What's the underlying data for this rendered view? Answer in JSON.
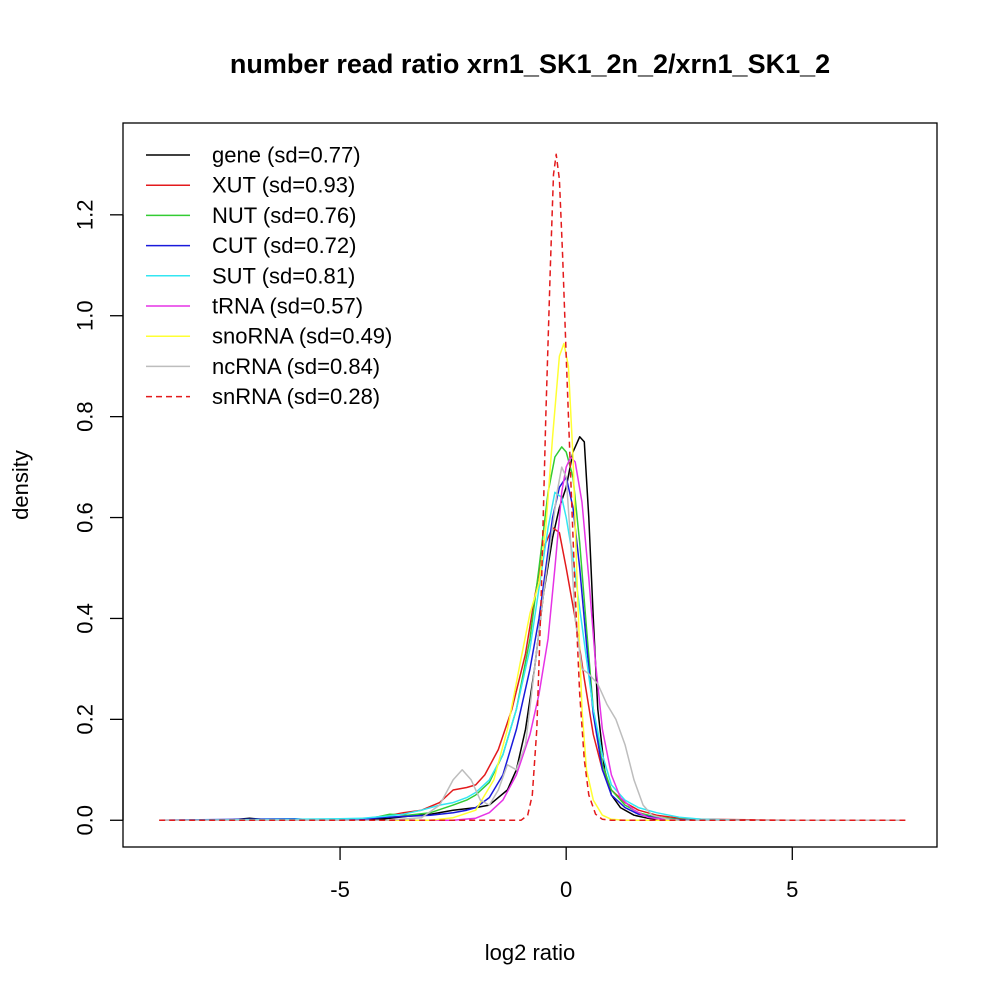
{
  "chart_data": {
    "type": "line",
    "title": "number read ratio xrn1_SK1_2n_2/xrn1_SK1_2",
    "xlabel": "log2 ratio",
    "ylabel": "density",
    "xlim": [
      -9.8,
      8.2
    ],
    "ylim": [
      -0.053,
      1.382
    ],
    "x_ticks": [
      -5,
      0,
      5
    ],
    "x_tick_labels": [
      "-5",
      "0",
      "5"
    ],
    "y_ticks": [
      0.0,
      0.2,
      0.4,
      0.6,
      0.8,
      1.0,
      1.2
    ],
    "y_tick_labels": [
      "0.0",
      "0.2",
      "0.4",
      "0.6",
      "0.8",
      "1.0",
      "1.2"
    ],
    "grid": false,
    "legend_position": "top-left",
    "series": [
      {
        "name": "gene (sd=0.77)",
        "color": "#000000",
        "dash": false,
        "points": [
          [
            -9.0,
            0
          ],
          [
            -7.5,
            0
          ],
          [
            -7,
            0.004
          ],
          [
            -6.5,
            0
          ],
          [
            -6,
            0.002
          ],
          [
            -5,
            0.001
          ],
          [
            -4,
            0.003
          ],
          [
            -3.5,
            0.008
          ],
          [
            -3,
            0.012
          ],
          [
            -2.5,
            0.02
          ],
          [
            -2,
            0.025
          ],
          [
            -1.7,
            0.03
          ],
          [
            -1.5,
            0.045
          ],
          [
            -1.3,
            0.06
          ],
          [
            -1.1,
            0.1
          ],
          [
            -0.9,
            0.18
          ],
          [
            -0.7,
            0.3
          ],
          [
            -0.5,
            0.45
          ],
          [
            -0.3,
            0.56
          ],
          [
            -0.15,
            0.62
          ],
          [
            0,
            0.66
          ],
          [
            0.15,
            0.73
          ],
          [
            0.3,
            0.76
          ],
          [
            0.4,
            0.75
          ],
          [
            0.5,
            0.6
          ],
          [
            0.6,
            0.4
          ],
          [
            0.7,
            0.22
          ],
          [
            0.85,
            0.1
          ],
          [
            1.0,
            0.05
          ],
          [
            1.2,
            0.025
          ],
          [
            1.5,
            0.01
          ],
          [
            1.8,
            0.004
          ],
          [
            2.2,
            0.001
          ],
          [
            3,
            0
          ],
          [
            7.5,
            0
          ]
        ]
      },
      {
        "name": "XUT (sd=0.93)",
        "color": "#e31a1c",
        "dash": false,
        "points": [
          [
            -9.0,
            0
          ],
          [
            -6,
            0.001
          ],
          [
            -5,
            0.002
          ],
          [
            -4.5,
            0.003
          ],
          [
            -4,
            0.008
          ],
          [
            -3.6,
            0.015
          ],
          [
            -3.2,
            0.02
          ],
          [
            -2.8,
            0.035
          ],
          [
            -2.5,
            0.06
          ],
          [
            -2.2,
            0.065
          ],
          [
            -2,
            0.07
          ],
          [
            -1.8,
            0.09
          ],
          [
            -1.5,
            0.14
          ],
          [
            -1.2,
            0.22
          ],
          [
            -0.9,
            0.33
          ],
          [
            -0.7,
            0.44
          ],
          [
            -0.5,
            0.54
          ],
          [
            -0.3,
            0.58
          ],
          [
            -0.15,
            0.57
          ],
          [
            0,
            0.5
          ],
          [
            0.2,
            0.4
          ],
          [
            0.4,
            0.28
          ],
          [
            0.6,
            0.17
          ],
          [
            0.8,
            0.1
          ],
          [
            1.0,
            0.06
          ],
          [
            1.3,
            0.035
          ],
          [
            1.6,
            0.02
          ],
          [
            2.0,
            0.01
          ],
          [
            2.5,
            0.004
          ],
          [
            3,
            0.002
          ],
          [
            4,
            0.001
          ],
          [
            5,
            0
          ],
          [
            7.5,
            0
          ]
        ]
      },
      {
        "name": "NUT (sd=0.76)",
        "color": "#33cc33",
        "dash": false,
        "points": [
          [
            -9.0,
            0
          ],
          [
            -6,
            0
          ],
          [
            -5,
            0.002
          ],
          [
            -4.3,
            0.004
          ],
          [
            -3.9,
            0.012
          ],
          [
            -3.5,
            0.01
          ],
          [
            -3,
            0.015
          ],
          [
            -2.5,
            0.03
          ],
          [
            -2.2,
            0.04
          ],
          [
            -2,
            0.05
          ],
          [
            -1.7,
            0.075
          ],
          [
            -1.4,
            0.13
          ],
          [
            -1.1,
            0.22
          ],
          [
            -0.8,
            0.36
          ],
          [
            -0.6,
            0.5
          ],
          [
            -0.4,
            0.65
          ],
          [
            -0.25,
            0.72
          ],
          [
            -0.1,
            0.74
          ],
          [
            0,
            0.73
          ],
          [
            0.15,
            0.68
          ],
          [
            0.3,
            0.55
          ],
          [
            0.45,
            0.38
          ],
          [
            0.6,
            0.22
          ],
          [
            0.8,
            0.11
          ],
          [
            1.0,
            0.06
          ],
          [
            1.3,
            0.03
          ],
          [
            1.6,
            0.015
          ],
          [
            2.0,
            0.006
          ],
          [
            2.5,
            0.002
          ],
          [
            3,
            0
          ],
          [
            7.5,
            0
          ]
        ]
      },
      {
        "name": "CUT (sd=0.72)",
        "color": "#1a1adb",
        "dash": false,
        "points": [
          [
            -9.0,
            0
          ],
          [
            -6,
            0.003
          ],
          [
            -5.5,
            0
          ],
          [
            -5,
            0.001
          ],
          [
            -4.5,
            0.002
          ],
          [
            -4,
            0.006
          ],
          [
            -3.5,
            0.008
          ],
          [
            -3,
            0.01
          ],
          [
            -2.5,
            0.015
          ],
          [
            -2.2,
            0.02
          ],
          [
            -2,
            0.025
          ],
          [
            -1.7,
            0.045
          ],
          [
            -1.4,
            0.09
          ],
          [
            -1.1,
            0.18
          ],
          [
            -0.8,
            0.3
          ],
          [
            -0.6,
            0.4
          ],
          [
            -0.45,
            0.5
          ],
          [
            -0.3,
            0.6
          ],
          [
            -0.15,
            0.66
          ],
          [
            0,
            0.68
          ],
          [
            0.15,
            0.62
          ],
          [
            0.3,
            0.5
          ],
          [
            0.45,
            0.35
          ],
          [
            0.6,
            0.21
          ],
          [
            0.8,
            0.1
          ],
          [
            1.0,
            0.05
          ],
          [
            1.3,
            0.025
          ],
          [
            1.6,
            0.012
          ],
          [
            2.0,
            0.004
          ],
          [
            2.5,
            0.001
          ],
          [
            3,
            0
          ],
          [
            7.5,
            0
          ]
        ]
      },
      {
        "name": "SUT (sd=0.81)",
        "color": "#33e6f2",
        "dash": false,
        "points": [
          [
            -9.0,
            0
          ],
          [
            -6,
            0.002
          ],
          [
            -5,
            0.003
          ],
          [
            -4.5,
            0.004
          ],
          [
            -4,
            0.008
          ],
          [
            -3.6,
            0.012
          ],
          [
            -3.2,
            0.02
          ],
          [
            -2.8,
            0.03
          ],
          [
            -2.5,
            0.035
          ],
          [
            -2.2,
            0.045
          ],
          [
            -2,
            0.055
          ],
          [
            -1.7,
            0.08
          ],
          [
            -1.4,
            0.13
          ],
          [
            -1.1,
            0.22
          ],
          [
            -0.8,
            0.34
          ],
          [
            -0.6,
            0.46
          ],
          [
            -0.4,
            0.58
          ],
          [
            -0.25,
            0.65
          ],
          [
            -0.1,
            0.64
          ],
          [
            0,
            0.6
          ],
          [
            0.15,
            0.52
          ],
          [
            0.3,
            0.42
          ],
          [
            0.45,
            0.32
          ],
          [
            0.6,
            0.22
          ],
          [
            0.8,
            0.13
          ],
          [
            1.0,
            0.07
          ],
          [
            1.3,
            0.04
          ],
          [
            1.6,
            0.025
          ],
          [
            2.0,
            0.015
          ],
          [
            2.5,
            0.006
          ],
          [
            3,
            0.002
          ],
          [
            4,
            0
          ],
          [
            7.5,
            0
          ]
        ]
      },
      {
        "name": "tRNA (sd=0.57)",
        "color": "#e633e6",
        "dash": false,
        "points": [
          [
            -9.0,
            0
          ],
          [
            -2.5,
            0
          ],
          [
            -2,
            0.004
          ],
          [
            -1.7,
            0.015
          ],
          [
            -1.4,
            0.04
          ],
          [
            -1.1,
            0.09
          ],
          [
            -0.8,
            0.17
          ],
          [
            -0.6,
            0.25
          ],
          [
            -0.4,
            0.36
          ],
          [
            -0.25,
            0.5
          ],
          [
            -0.1,
            0.65
          ],
          [
            0,
            0.7
          ],
          [
            0.1,
            0.72
          ],
          [
            0.2,
            0.71
          ],
          [
            0.35,
            0.63
          ],
          [
            0.5,
            0.48
          ],
          [
            0.65,
            0.31
          ],
          [
            0.8,
            0.18
          ],
          [
            1.0,
            0.09
          ],
          [
            1.2,
            0.045
          ],
          [
            1.5,
            0.02
          ],
          [
            1.8,
            0.006
          ],
          [
            2.2,
            0.001
          ],
          [
            2.5,
            0
          ],
          [
            7.5,
            0
          ]
        ]
      },
      {
        "name": "snoRNA (sd=0.49)",
        "color": "#ffff33",
        "dash": false,
        "points": [
          [
            -9.0,
            0
          ],
          [
            -3,
            0
          ],
          [
            -2.5,
            0.005
          ],
          [
            -2,
            0.02
          ],
          [
            -1.6,
            0.08
          ],
          [
            -1.3,
            0.18
          ],
          [
            -1.0,
            0.32
          ],
          [
            -0.8,
            0.41
          ],
          [
            -0.6,
            0.47
          ],
          [
            -0.45,
            0.58
          ],
          [
            -0.3,
            0.76
          ],
          [
            -0.15,
            0.92
          ],
          [
            -0.05,
            0.945
          ],
          [
            0.05,
            0.9
          ],
          [
            0.15,
            0.72
          ],
          [
            0.25,
            0.45
          ],
          [
            0.35,
            0.22
          ],
          [
            0.45,
            0.1
          ],
          [
            0.6,
            0.04
          ],
          [
            0.8,
            0.01
          ],
          [
            1.0,
            0.002
          ],
          [
            1.3,
            0
          ],
          [
            7.5,
            0
          ]
        ]
      },
      {
        "name": "ncRNA (sd=0.84)",
        "color": "#bdbdbd",
        "dash": false,
        "points": [
          [
            -9.0,
            0
          ],
          [
            -4,
            0
          ],
          [
            -3.2,
            0.005
          ],
          [
            -2.8,
            0.03
          ],
          [
            -2.5,
            0.08
          ],
          [
            -2.3,
            0.1
          ],
          [
            -2.1,
            0.08
          ],
          [
            -1.9,
            0.04
          ],
          [
            -1.7,
            0.03
          ],
          [
            -1.5,
            0.06
          ],
          [
            -1.3,
            0.11
          ],
          [
            -1.1,
            0.1
          ],
          [
            -0.9,
            0.15
          ],
          [
            -0.7,
            0.3
          ],
          [
            -0.5,
            0.45
          ],
          [
            -0.35,
            0.55
          ],
          [
            -0.2,
            0.65
          ],
          [
            -0.1,
            0.7
          ],
          [
            0,
            0.68
          ],
          [
            0.1,
            0.55
          ],
          [
            0.2,
            0.4
          ],
          [
            0.35,
            0.3
          ],
          [
            0.5,
            0.29
          ],
          [
            0.7,
            0.27
          ],
          [
            0.9,
            0.23
          ],
          [
            1.1,
            0.2
          ],
          [
            1.3,
            0.15
          ],
          [
            1.5,
            0.08
          ],
          [
            1.7,
            0.03
          ],
          [
            1.9,
            0.01
          ],
          [
            2.2,
            0.003
          ],
          [
            2.5,
            0
          ],
          [
            7.5,
            0
          ]
        ]
      },
      {
        "name": "snRNA (sd=0.28)",
        "color": "#e31a1c",
        "dash": true,
        "points": [
          [
            -9.0,
            0
          ],
          [
            -1,
            0
          ],
          [
            -0.85,
            0.01
          ],
          [
            -0.75,
            0.05
          ],
          [
            -0.65,
            0.18
          ],
          [
            -0.55,
            0.45
          ],
          [
            -0.45,
            0.8
          ],
          [
            -0.35,
            1.1
          ],
          [
            -0.28,
            1.28
          ],
          [
            -0.22,
            1.32
          ],
          [
            -0.15,
            1.27
          ],
          [
            -0.08,
            1.12
          ],
          [
            0,
            0.92
          ],
          [
            0.1,
            0.68
          ],
          [
            0.2,
            0.45
          ],
          [
            0.3,
            0.25
          ],
          [
            0.4,
            0.12
          ],
          [
            0.5,
            0.05
          ],
          [
            0.65,
            0.012
          ],
          [
            0.8,
            0.002
          ],
          [
            1.0,
            0
          ],
          [
            7.5,
            0
          ]
        ]
      }
    ]
  }
}
